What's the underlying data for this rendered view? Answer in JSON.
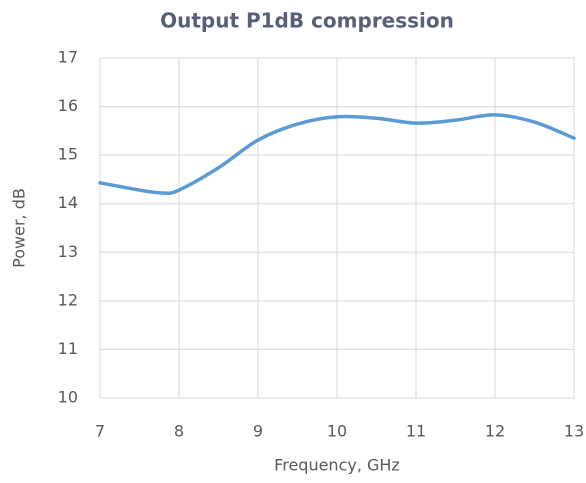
{
  "chart_data": {
    "type": "line",
    "title": "Output P1dB compression",
    "x_label": "Frequency, GHz",
    "y_label": "Power, dB",
    "x": [
      7,
      7.5,
      7.8,
      8,
      8.5,
      9,
      9.5,
      10,
      10.5,
      11,
      11.5,
      12,
      12.5,
      13
    ],
    "series": [
      {
        "name": "Output P1dB",
        "color": "#5b9bd5",
        "values": [
          14.43,
          14.28,
          14.22,
          14.28,
          14.74,
          15.31,
          15.64,
          15.79,
          15.76,
          15.66,
          15.72,
          15.83,
          15.68,
          15.35
        ]
      }
    ],
    "xlim": [
      7,
      13
    ],
    "xticks": [
      7,
      8,
      9,
      10,
      11,
      12,
      13
    ],
    "ylim": [
      10,
      17
    ],
    "yticks": [
      10,
      11,
      12,
      13,
      14,
      15,
      16,
      17
    ],
    "grid": true
  }
}
